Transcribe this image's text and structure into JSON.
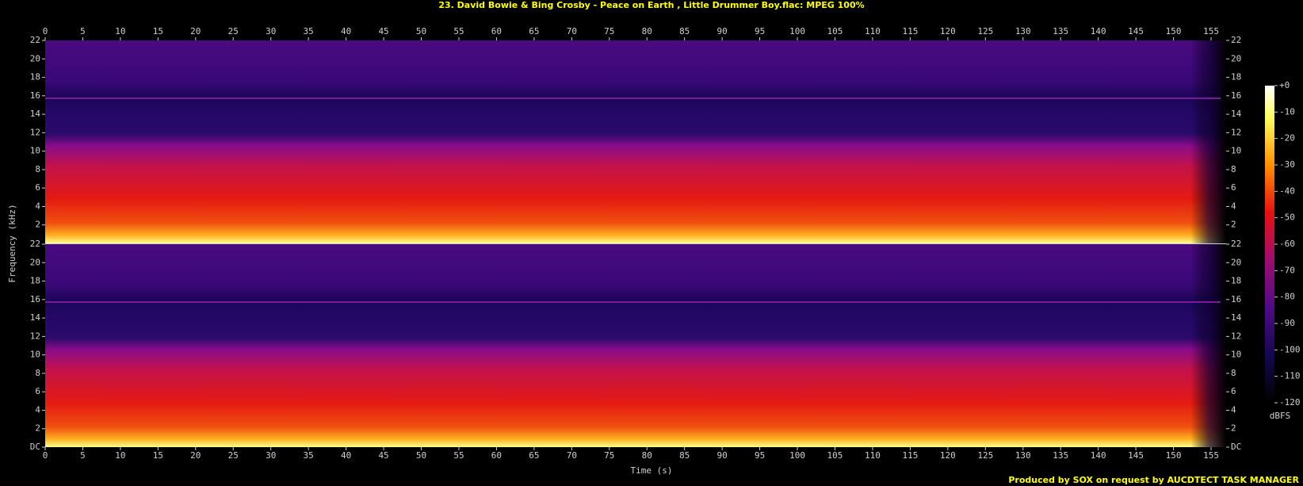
{
  "chart_data": {
    "type": "spectrogram",
    "title": "23. David Bowie & Bing Crosby - Peace on Earth , Little Drummer Boy.flac: MPEG 100%",
    "xlabel": "Time (s)",
    "ylabel": "Frequency (kHz)",
    "xlim": [
      0,
      157
    ],
    "xticks": [
      0,
      5,
      10,
      15,
      20,
      25,
      30,
      35,
      40,
      45,
      50,
      55,
      60,
      65,
      70,
      75,
      80,
      85,
      90,
      95,
      100,
      105,
      110,
      115,
      120,
      125,
      130,
      135,
      140,
      145,
      150,
      155
    ],
    "ylim": [
      0,
      22
    ],
    "yticks": [
      {
        "value": 0,
        "label": "DC"
      },
      2,
      4,
      6,
      8,
      10,
      12,
      14,
      16,
      18,
      20,
      22
    ],
    "colorbar": {
      "label": "dBFS",
      "lim": [
        -120,
        0
      ],
      "ticks": [
        {
          "value": 0,
          "label": "+0"
        },
        -10,
        -20,
        -30,
        -40,
        -50,
        -60,
        -70,
        -80,
        -90,
        -100,
        -110,
        -120
      ]
    },
    "footer": "Produced by SOX on request by AUCDTECT TASK MANAGER"
  }
}
